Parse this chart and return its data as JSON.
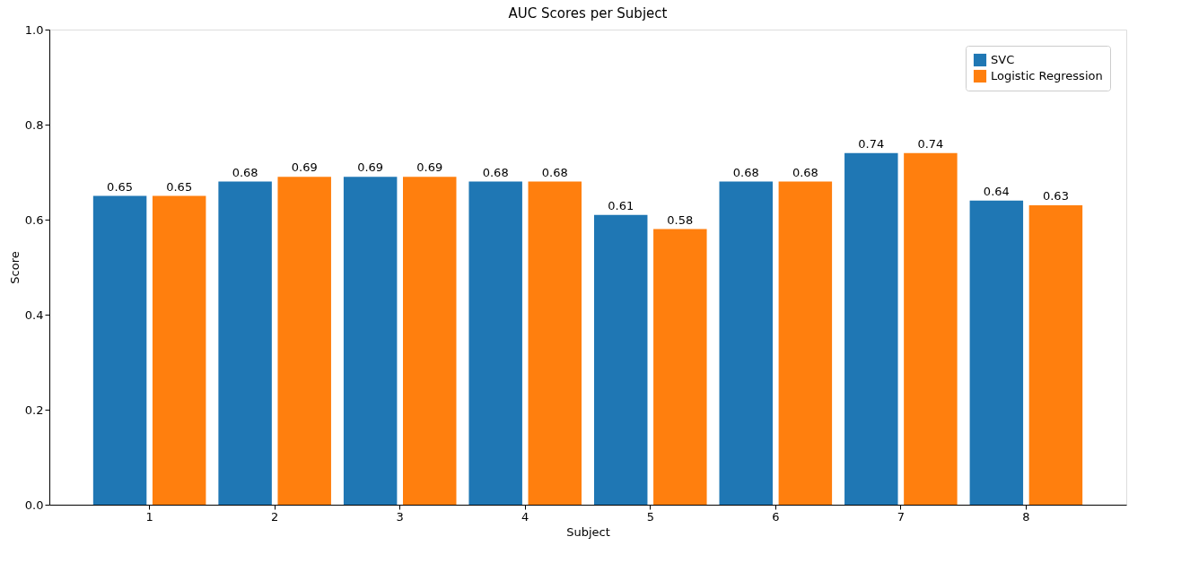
{
  "chart_data": {
    "type": "bar",
    "title": "AUC Scores per Subject",
    "xlabel": "Subject",
    "ylabel": "Score",
    "categories": [
      "1",
      "2",
      "3",
      "4",
      "5",
      "6",
      "7",
      "8"
    ],
    "series": [
      {
        "name": "SVC",
        "color": "#1f77b4",
        "values": [
          0.65,
          0.68,
          0.69,
          0.68,
          0.61,
          0.68,
          0.74,
          0.64
        ]
      },
      {
        "name": "Logistic Regression",
        "color": "#ff7f0e",
        "values": [
          0.65,
          0.69,
          0.69,
          0.68,
          0.58,
          0.68,
          0.74,
          0.63
        ]
      }
    ],
    "ylim": [
      0,
      1.0
    ],
    "yticks": [
      {
        "value": 0,
        "label": "0.0"
      },
      0.2,
      0.4,
      0.6,
      0.8,
      {
        "value": 1,
        "label": "1.0"
      }
    ],
    "data_labels": true,
    "legend": "top right",
    "grid": false
  }
}
